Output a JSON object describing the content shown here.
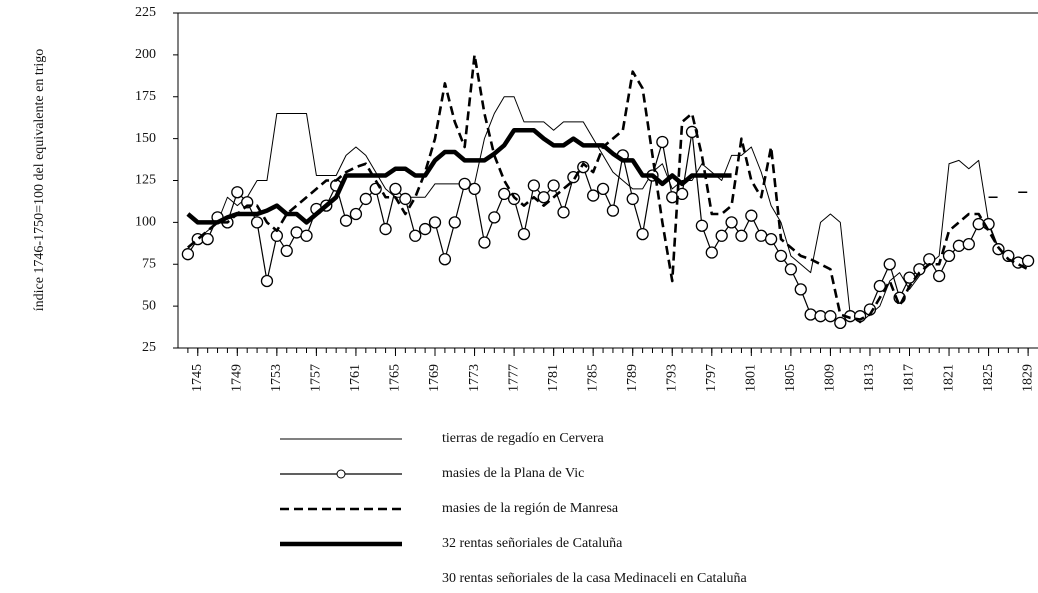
{
  "chart_data": {
    "type": "line",
    "y_label": "índice 1746-1750=100 del equivalente en trigo",
    "x": [
      1744,
      1745,
      1746,
      1747,
      1748,
      1749,
      1750,
      1751,
      1752,
      1753,
      1754,
      1755,
      1756,
      1757,
      1758,
      1759,
      1760,
      1761,
      1762,
      1763,
      1764,
      1765,
      1766,
      1767,
      1768,
      1769,
      1770,
      1771,
      1772,
      1773,
      1774,
      1775,
      1776,
      1777,
      1778,
      1779,
      1780,
      1781,
      1782,
      1783,
      1784,
      1785,
      1786,
      1787,
      1788,
      1789,
      1790,
      1791,
      1792,
      1793,
      1794,
      1795,
      1796,
      1797,
      1798,
      1799,
      1800,
      1801,
      1802,
      1803,
      1804,
      1805,
      1806,
      1807,
      1808,
      1809,
      1810,
      1811,
      1812,
      1813,
      1814,
      1815,
      1816,
      1817,
      1818,
      1819,
      1820,
      1821,
      1822,
      1823,
      1824,
      1825,
      1826,
      1827,
      1828,
      1829
    ],
    "xlim": [
      1743,
      1830
    ],
    "xticks": [
      1745,
      1749,
      1753,
      1757,
      1761,
      1765,
      1769,
      1773,
      1777,
      1781,
      1785,
      1789,
      1793,
      1797,
      1801,
      1805,
      1809,
      1813,
      1817,
      1821,
      1825,
      1829
    ],
    "ylim": [
      25,
      225
    ],
    "yticks": [
      25,
      50,
      75,
      100,
      125,
      150,
      175,
      200,
      225
    ],
    "series": [
      {
        "name": "tierras de regadío en Cervera",
        "color": "#000000",
        "style": "thin",
        "values": [
          85,
          90,
          95,
          100,
          115,
          110,
          115,
          125,
          125,
          165,
          165,
          165,
          165,
          128,
          128,
          128,
          140,
          145,
          140,
          130,
          120,
          115,
          115,
          115,
          115,
          123,
          123,
          123,
          123,
          123,
          150,
          165,
          175,
          175,
          160,
          160,
          160,
          155,
          160,
          160,
          160,
          150,
          140,
          130,
          125,
          120,
          120,
          130,
          135,
          120,
          125,
          125,
          135,
          130,
          125,
          140,
          140,
          145,
          130,
          110,
          100,
          80,
          75,
          70,
          100,
          105,
          100,
          45,
          40,
          45,
          50,
          65,
          70,
          60,
          68,
          75,
          80,
          135,
          137,
          132,
          137,
          100,
          85,
          80,
          75,
          75
        ]
      },
      {
        "name": "masies de la Plana de Vic",
        "color": "#000000",
        "style": "circles",
        "values": [
          81,
          90,
          90,
          103,
          100,
          118,
          112,
          100,
          65,
          92,
          83,
          94,
          92,
          108,
          110,
          122,
          101,
          105,
          114,
          120,
          96,
          120,
          114,
          92,
          96,
          100,
          78,
          100,
          123,
          120,
          88,
          103,
          117,
          114,
          93,
          122,
          115,
          122,
          106,
          127,
          133,
          116,
          120,
          107,
          140,
          114,
          93,
          128,
          148,
          115,
          117,
          154,
          98,
          82,
          92,
          100,
          92,
          104,
          92,
          90,
          80,
          72,
          60,
          45,
          44,
          44,
          40,
          44,
          44,
          48,
          62,
          75,
          55,
          67,
          72,
          78,
          68,
          80,
          86,
          87,
          99,
          99,
          84,
          80,
          76,
          77
        ]
      },
      {
        "name": "masies de la región de Manresa",
        "color": "#000000",
        "style": "dashed",
        "values": [
          85,
          90,
          95,
          100,
          100,
          105,
          110,
          110,
          100,
          95,
          105,
          110,
          115,
          120,
          125,
          125,
          130,
          133,
          135,
          125,
          115,
          115,
          105,
          115,
          130,
          150,
          183,
          160,
          145,
          200,
          165,
          140,
          125,
          115,
          110,
          115,
          110,
          115,
          120,
          125,
          135,
          130,
          145,
          150,
          155,
          190,
          180,
          140,
          100,
          65,
          160,
          165,
          140,
          105,
          105,
          110,
          150,
          125,
          115,
          145,
          90,
          85,
          80,
          78,
          75,
          72,
          45,
          43,
          42,
          45,
          55,
          65,
          50,
          62,
          70,
          75,
          75,
          95,
          100,
          105,
          105,
          95,
          85,
          78,
          75,
          72
        ]
      },
      {
        "name": "32 rentas señoriales de Cataluña",
        "color": "#000000",
        "style": "bold",
        "values": [
          105,
          100,
          100,
          100,
          103,
          105,
          105,
          105,
          107,
          110,
          105,
          105,
          100,
          105,
          110,
          115,
          128,
          128,
          128,
          128,
          128,
          132,
          132,
          128,
          128,
          137,
          142,
          142,
          137,
          137,
          137,
          141,
          146,
          155,
          155,
          155,
          150,
          146,
          146,
          150,
          146,
          146,
          146,
          141,
          137,
          137,
          128,
          128,
          123,
          128,
          123,
          128,
          128,
          128,
          128,
          128,
          null,
          null,
          null,
          null,
          null,
          null,
          null,
          null,
          null,
          null,
          null,
          null,
          null,
          null,
          null,
          null,
          null,
          null,
          null,
          null,
          null,
          null,
          null,
          null,
          null,
          null,
          null,
          null,
          null,
          null
        ]
      },
      {
        "name": "30 rentas señoriales de la casa Medinaceli en Cataluña",
        "color": "#000000",
        "style": "sparse",
        "values": [
          null,
          null,
          null,
          null,
          null,
          null,
          null,
          null,
          null,
          null,
          null,
          null,
          null,
          null,
          null,
          null,
          null,
          null,
          null,
          null,
          null,
          null,
          null,
          null,
          null,
          null,
          null,
          null,
          null,
          null,
          null,
          null,
          null,
          null,
          null,
          null,
          null,
          null,
          null,
          null,
          null,
          null,
          null,
          null,
          null,
          null,
          null,
          null,
          null,
          null,
          null,
          null,
          null,
          null,
          null,
          null,
          null,
          null,
          null,
          null,
          null,
          null,
          null,
          null,
          null,
          null,
          null,
          null,
          null,
          null,
          null,
          null,
          null,
          null,
          null,
          null,
          null,
          null,
          null,
          null,
          null,
          115,
          115,
          null,
          118,
          118
        ]
      }
    ]
  }
}
